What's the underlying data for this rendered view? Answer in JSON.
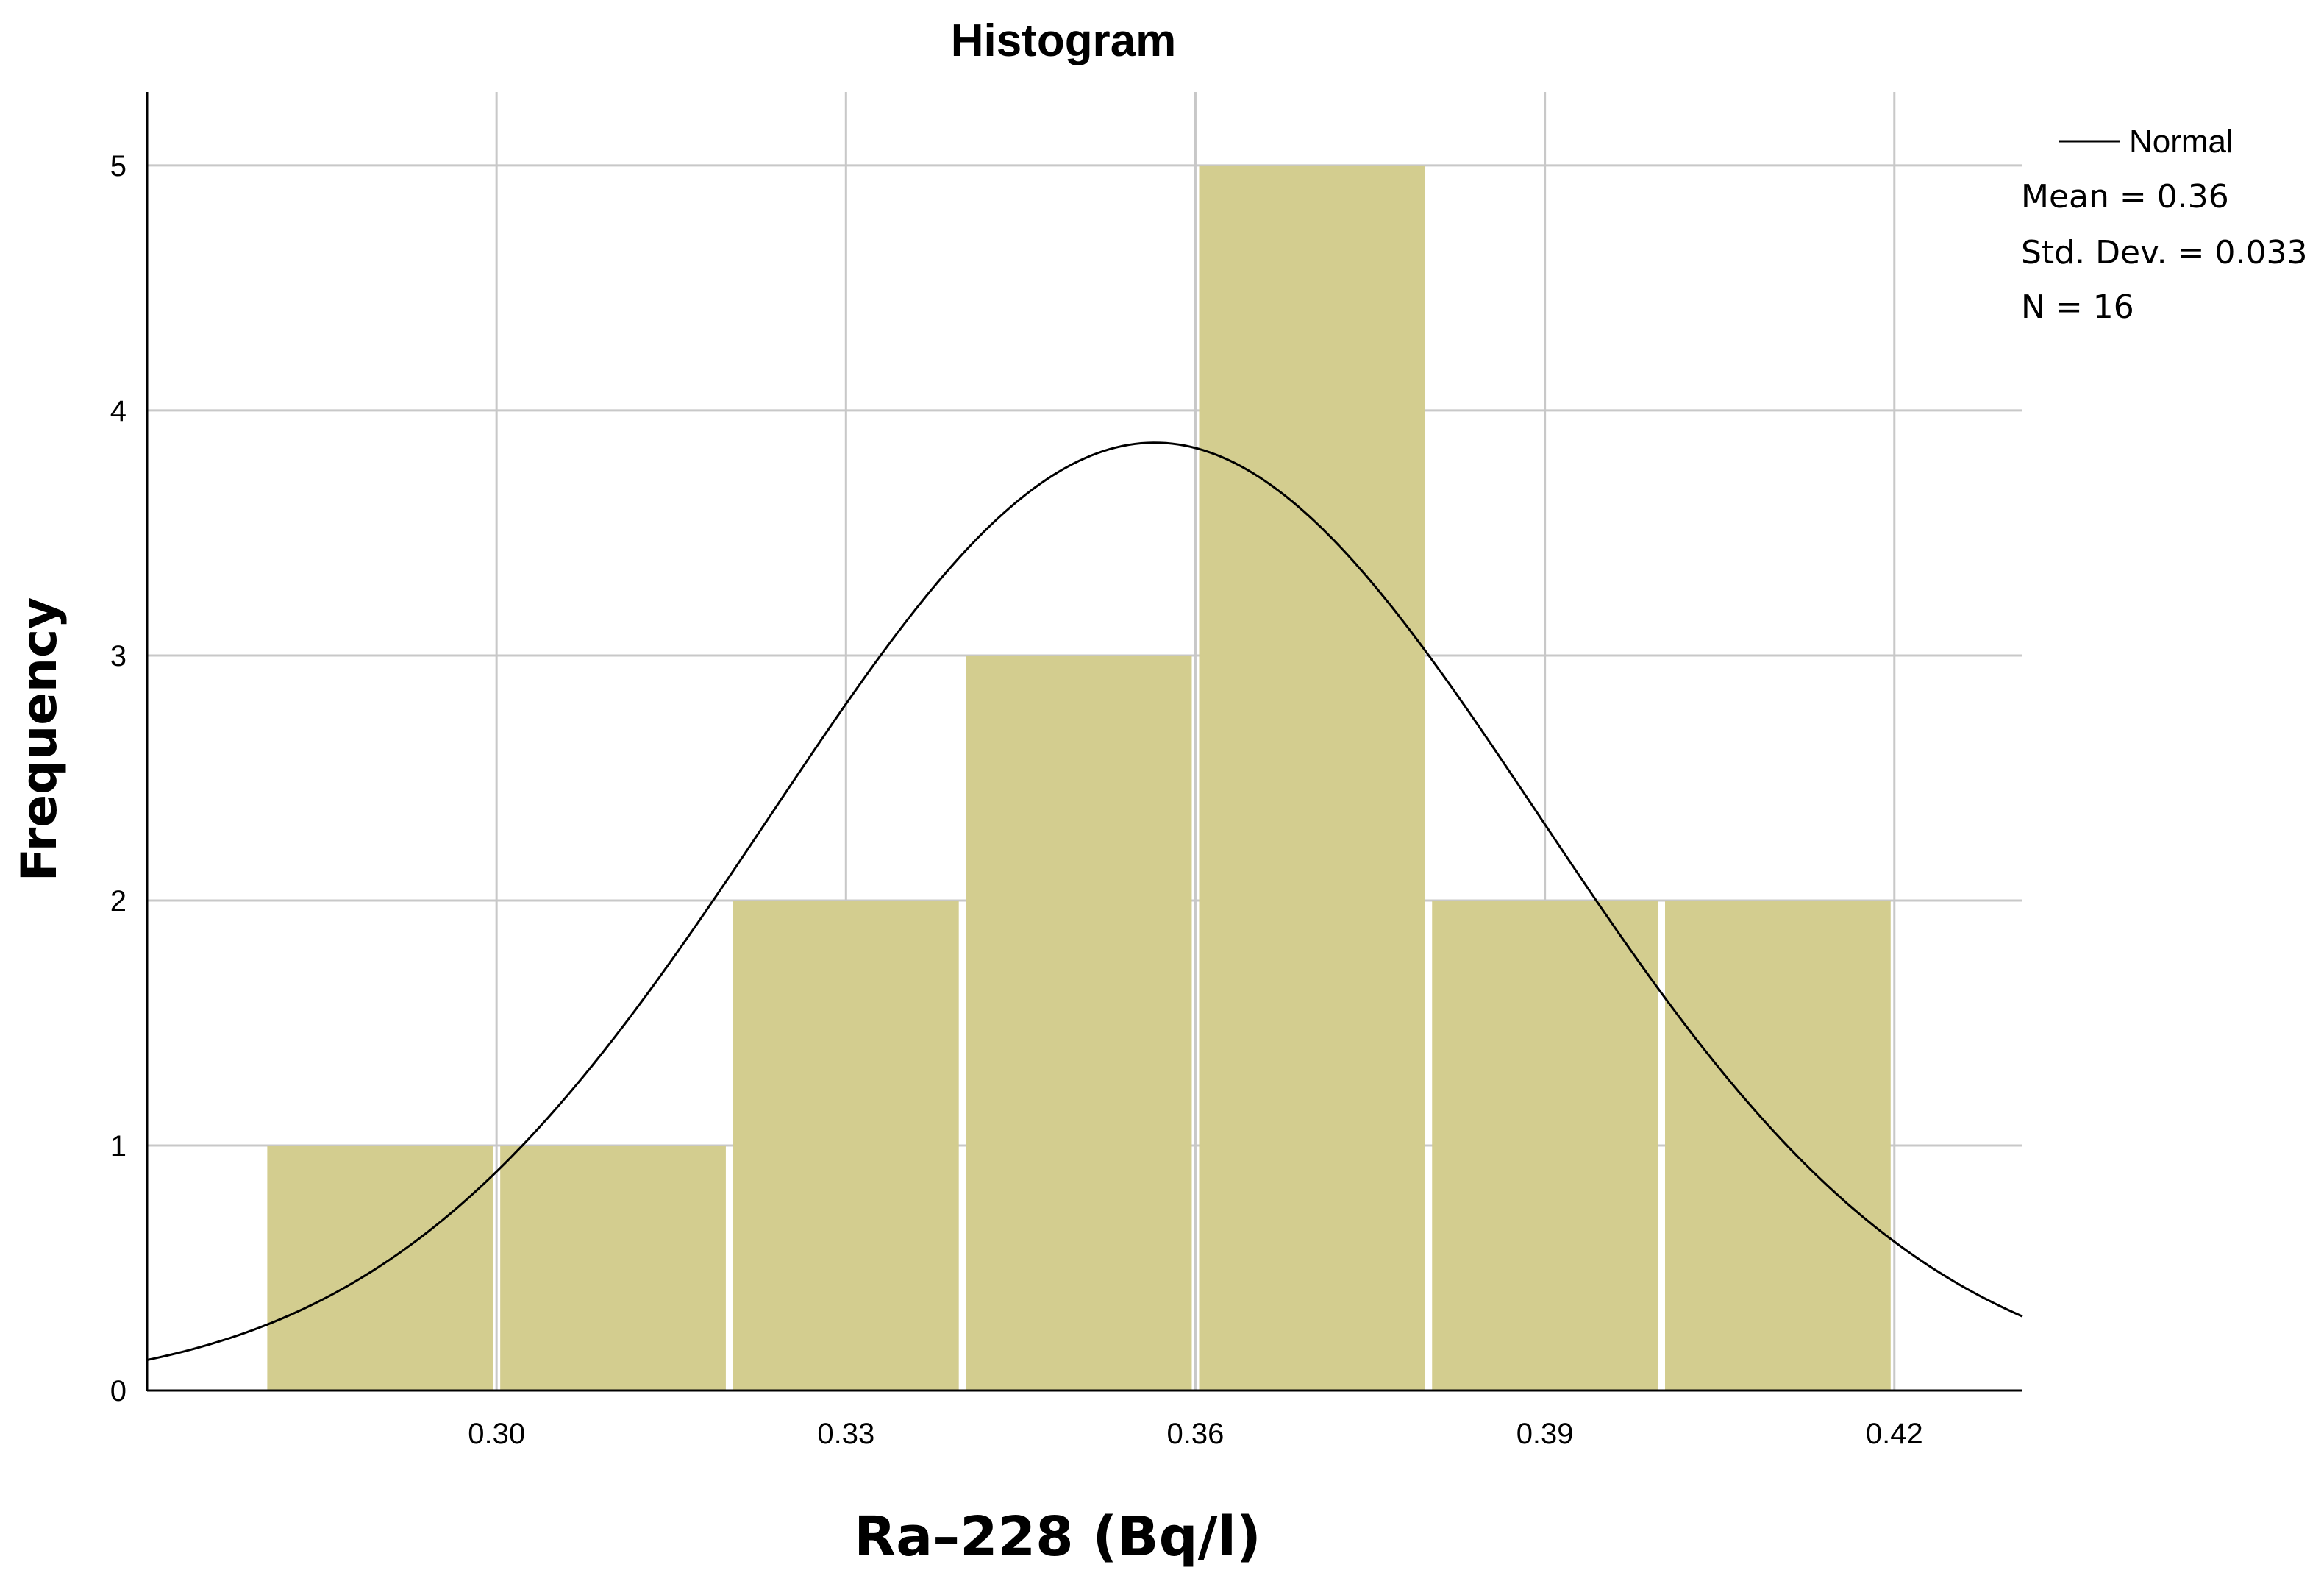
{
  "chart_data": {
    "type": "bar",
    "subtype": "histogram",
    "title": "Histogram",
    "xlabel": "Ra–228 (Bq/l)",
    "ylabel": "Frequency",
    "xlim": [
      0.27,
      0.431
    ],
    "ylim": [
      0,
      5.3
    ],
    "x_ticks": [
      {
        "value": 0.3,
        "label": "0.30"
      },
      {
        "value": 0.33,
        "label": "0.33"
      },
      {
        "value": 0.36,
        "label": "0.36"
      },
      {
        "value": 0.39,
        "label": "0.39"
      },
      {
        "value": 0.42,
        "label": "0.42"
      }
    ],
    "y_ticks": [
      {
        "value": 0,
        "label": "0"
      },
      {
        "value": 1,
        "label": "1"
      },
      {
        "value": 2,
        "label": "2"
      },
      {
        "value": 3,
        "label": "3"
      },
      {
        "value": 4,
        "label": "4"
      },
      {
        "value": 5,
        "label": "5"
      }
    ],
    "grid": true,
    "bins": [
      {
        "start": 0.28,
        "end": 0.3,
        "count": 1
      },
      {
        "start": 0.3,
        "end": 0.32,
        "count": 1
      },
      {
        "start": 0.32,
        "end": 0.34,
        "count": 2
      },
      {
        "start": 0.34,
        "end": 0.36,
        "count": 3
      },
      {
        "start": 0.36,
        "end": 0.38,
        "count": 5
      },
      {
        "start": 0.38,
        "end": 0.4,
        "count": 2
      },
      {
        "start": 0.4,
        "end": 0.42,
        "count": 2
      }
    ],
    "normal_curve": {
      "mean": 0.3565,
      "sd": 0.033,
      "n": 16,
      "bin_width": 0.02
    },
    "legend": {
      "position": "top-right",
      "series_label": "Normal",
      "mean_text": "Mean = 0.36",
      "std_text": "Std. Dev. = 0.033",
      "n_text": "N = 16"
    },
    "colors": {
      "bar": "#d3cd8f",
      "curve": "#000000",
      "grid": "#c8c8c8",
      "axis": "#000000",
      "background": "#ffffff"
    }
  }
}
